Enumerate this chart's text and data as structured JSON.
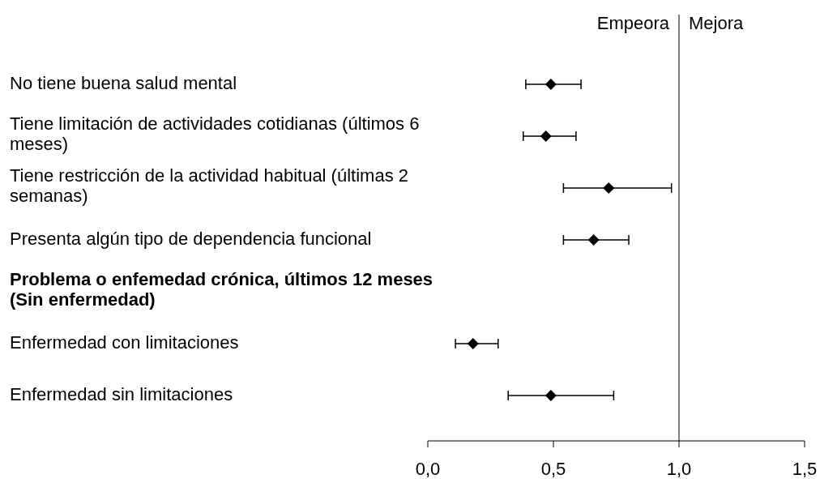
{
  "chart_data": {
    "type": "scatter",
    "orientation": "horizontal",
    "marker": "diamond",
    "color": "#000000",
    "categories": [
      "No tiene buena salud mental",
      "Tiene limitación de actividades cotidianas (últimos 6 meses)",
      "Tiene restricción de la actividad habitual (últimas 2 semanas)",
      "Presenta algún tipo de dependencia funcional",
      "Problema o enfemedad crónica, últimos 12 meses (Sin enfermedad)",
      "Enfermedad con limitaciones",
      "Enfermedad sin limitaciones"
    ],
    "values": [
      0.49,
      0.47,
      0.72,
      0.66,
      null,
      0.18,
      0.49
    ],
    "errors": [
      [
        0.39,
        0.61
      ],
      [
        0.38,
        0.59
      ],
      [
        0.54,
        0.97
      ],
      [
        0.54,
        0.8
      ],
      null,
      [
        0.11,
        0.28
      ],
      [
        0.32,
        0.74
      ]
    ],
    "xlim": [
      0,
      1.5
    ],
    "xticks": [
      {
        "value": 0,
        "label": "0,0"
      },
      {
        "value": 0.5,
        "label": "0,5"
      },
      {
        "value": 1,
        "label": "1,0"
      },
      {
        "value": 1.5,
        "label": "1,5"
      }
    ],
    "ref_lines": [
      {
        "axis": "x",
        "value": 1,
        "color": "#000000"
      }
    ],
    "annotations": [
      "Empeora",
      "Mejora"
    ],
    "grid": false
  }
}
